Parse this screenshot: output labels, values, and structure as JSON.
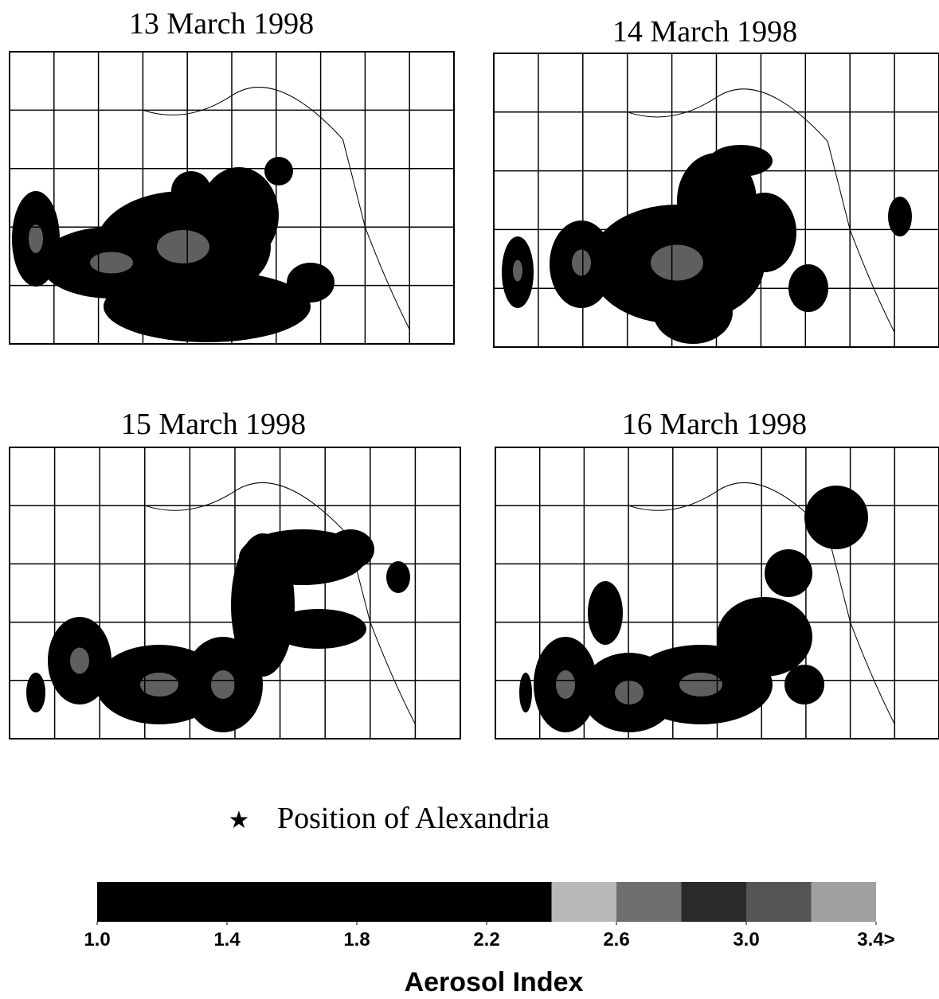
{
  "panels": [
    {
      "title": "13 March 1998"
    },
    {
      "title": "14 March 1998"
    },
    {
      "title": "15 March 1998"
    },
    {
      "title": "16 March 1998"
    }
  ],
  "legend": {
    "symbol": "★",
    "text": "Position of Alexandria"
  },
  "colorbar": {
    "label": "Aerosol Index",
    "range": [
      1.0,
      3.4
    ],
    "ticks": [
      {
        "value": 1.0,
        "label": "1.0"
      },
      {
        "value": 1.4,
        "label": "1.4"
      },
      {
        "value": 1.8,
        "label": "1.8"
      },
      {
        "value": 2.2,
        "label": "2.2"
      },
      {
        "value": 2.6,
        "label": "2.6"
      },
      {
        "value": 3.0,
        "label": "3.0"
      },
      {
        "value": 3.4,
        "label": "3.4>"
      }
    ],
    "segments": [
      {
        "from": 1.0,
        "to": 2.4,
        "color": "#000000"
      },
      {
        "from": 2.4,
        "to": 2.6,
        "color": "#b8b8b8"
      },
      {
        "from": 2.6,
        "to": 2.8,
        "color": "#6e6e6e"
      },
      {
        "from": 2.8,
        "to": 3.0,
        "color": "#2a2a2a"
      },
      {
        "from": 3.0,
        "to": 3.2,
        "color": "#555555"
      },
      {
        "from": 3.2,
        "to": 3.4,
        "color": "#a0a0a0"
      }
    ]
  }
}
